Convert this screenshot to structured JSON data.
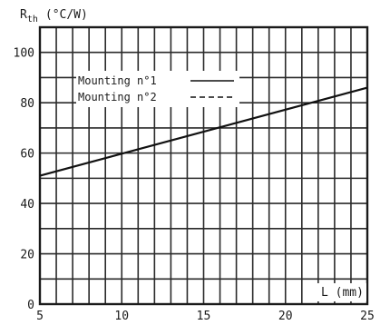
{
  "chart_data": {
    "type": "line",
    "title": "",
    "ylabel_main": "R",
    "ylabel_sub": "th",
    "ylabel_unit": "(°C/W)",
    "xlabel": "L  (mm)",
    "xlim": [
      5,
      25
    ],
    "ylim": [
      0,
      110
    ],
    "x_ticks": [
      5,
      10,
      15,
      20,
      25
    ],
    "y_ticks": [
      0,
      20,
      40,
      60,
      80,
      100
    ],
    "x_tick_labels": [
      "5",
      "10",
      "15",
      "20",
      "25"
    ],
    "y_tick_labels": [
      "0",
      "20",
      "40",
      "60",
      "80",
      "100"
    ],
    "grid": true,
    "legend_position": "top-left",
    "legend": [
      {
        "label": "Mounting n°1",
        "style": "solid"
      },
      {
        "label": "Mounting n°2",
        "style": "dashed"
      }
    ],
    "series": [
      {
        "name": "Mounting n°1",
        "style": "solid",
        "x": [
          5,
          25
        ],
        "y": [
          51,
          86
        ]
      }
    ]
  }
}
